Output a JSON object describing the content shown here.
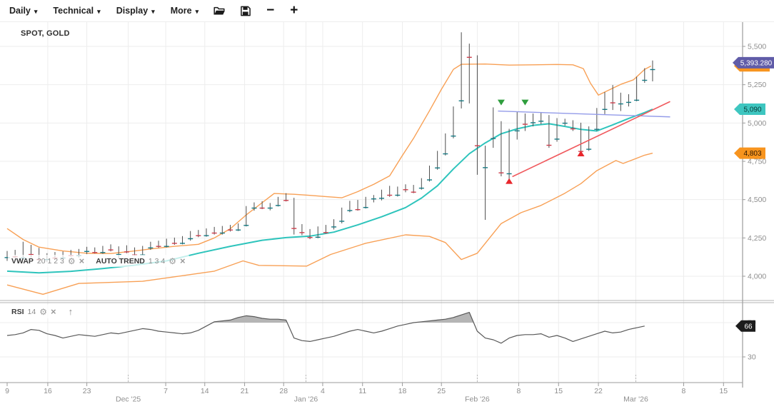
{
  "toolbar": {
    "menus": [
      {
        "label": "Daily"
      },
      {
        "label": "Technical"
      },
      {
        "label": "Display"
      },
      {
        "label": "More"
      }
    ],
    "zoom_out": "−",
    "zoom_in": "+"
  },
  "icons": {
    "caret": "▾",
    "gear": "⚙",
    "close": "×",
    "arrow_up": "↑"
  },
  "symbol": "SPOT, GOLD",
  "legend": {
    "vwap": {
      "name": "VWAP",
      "params": "20 1 2 3"
    },
    "auto_trend": {
      "name": "AUTO TREND",
      "params": "1 3 4"
    },
    "rsi": {
      "name": "RSI",
      "params": "14"
    }
  },
  "colors": {
    "candle_up": "#157983",
    "candle_down": "#CC3E4C",
    "wick": "#4d4d4d",
    "band": "#F8A055",
    "vwap_line": "#2EC4BC",
    "trend_blue": "#939BE9",
    "trend_red": "#F05A5E",
    "signal_sell": "#2F9E3E",
    "signal_buy": "#E8262C",
    "rsi_line": "#595959",
    "rsi_fill": "#b5b5b5",
    "grid": "#ededed",
    "axis_line": "#9b9b9b",
    "axis_text": "#8e8e8e"
  },
  "badges": [
    {
      "name": "upper-band-badge",
      "panel": "price",
      "price": 5373,
      "label": "",
      "color": "#F7941E",
      "text_color": "#2a1600",
      "obscured": true
    },
    {
      "name": "last-price-badge",
      "panel": "price",
      "price": 5393.28,
      "label": "5,393.280",
      "color": "#605CA8",
      "text_color": "#ffffff"
    },
    {
      "name": "vwap-badge",
      "panel": "price",
      "price": 5090,
      "label": "5,090",
      "color": "#3EC6C0",
      "text_color": "#083b38"
    },
    {
      "name": "lower-band-badge",
      "panel": "price",
      "price": 4803,
      "label": "4,803",
      "color": "#F7941E",
      "text_color": "#2a1600"
    },
    {
      "name": "rsi-badge",
      "panel": "rsi",
      "value": 66,
      "label": "66",
      "color": "#1C1C1C",
      "text_color": "#ffffff"
    }
  ],
  "chart_data": [
    {
      "type": "candlestick",
      "title": "SPOT, GOLD",
      "timeframe": "Daily",
      "y_axis": {
        "ticks": [
          5500,
          5250,
          5000,
          4750,
          4500,
          4250,
          4000
        ],
        "range": [
          3940,
          5600
        ]
      },
      "x_axis": {
        "day_ticks": [
          {
            "label": "9",
            "bar": 0
          },
          {
            "label": "16",
            "bar": 5.1
          },
          {
            "label": "23",
            "bar": 10
          },
          {
            "label": "7",
            "bar": 19.9
          },
          {
            "label": "14",
            "bar": 24.8
          },
          {
            "label": "21",
            "bar": 29.8
          },
          {
            "label": "28",
            "bar": 34.7
          },
          {
            "label": "4",
            "bar": 39.6
          },
          {
            "label": "11",
            "bar": 44.6
          },
          {
            "label": "18",
            "bar": 49.6
          },
          {
            "label": "25",
            "bar": 54.5
          },
          {
            "label": "8",
            "bar": 64.2
          },
          {
            "label": "15",
            "bar": 69.2
          },
          {
            "label": "22",
            "bar": 74.2
          },
          {
            "label": "8",
            "bar": 84.9
          },
          {
            "label": "15",
            "bar": 89.9
          }
        ],
        "month_ticks": [
          {
            "label": "Dec '25",
            "bar": 15.2
          },
          {
            "label": "Jan '26",
            "bar": 37.5
          },
          {
            "label": "Feb '26",
            "bar": 59
          },
          {
            "label": "Mar '26",
            "bar": 78.9
          }
        ]
      },
      "candles": [
        [
          4125,
          4165,
          4100,
          4150
        ],
        [
          4150,
          4172,
          4118,
          4130
        ],
        [
          4122,
          4225,
          4108,
          4158
        ],
        [
          4155,
          4205,
          4122,
          4145
        ],
        [
          4162,
          4185,
          4098,
          4112
        ],
        [
          4112,
          4150,
          4092,
          4135
        ],
        [
          4135,
          4158,
          4108,
          4122
        ],
        [
          4122,
          4162,
          4112,
          4150
        ],
        [
          4150,
          4172,
          4128,
          4138
        ],
        [
          4138,
          4178,
          4122,
          4165
        ],
        [
          4165,
          4192,
          4145,
          4175
        ],
        [
          4175,
          4188,
          4148,
          4158
        ],
        [
          4158,
          4198,
          4146,
          4188
        ],
        [
          4188,
          4208,
          4162,
          4175
        ],
        [
          4145,
          4195,
          4115,
          4182
        ],
        [
          4182,
          4202,
          4150,
          4162
        ],
        [
          4170,
          4188,
          4132,
          4142
        ],
        [
          4142,
          4198,
          4135,
          4188
        ],
        [
          4188,
          4225,
          4172,
          4212
        ],
        [
          4212,
          4232,
          4185,
          4198
        ],
        [
          4198,
          4245,
          4188,
          4232
        ],
        [
          4232,
          4252,
          4205,
          4218
        ],
        [
          4218,
          4262,
          4208,
          4248
        ],
        [
          4248,
          4295,
          4232,
          4282
        ],
        [
          4282,
          4302,
          4255,
          4268
        ],
        [
          4268,
          4312,
          4258,
          4298
        ],
        [
          4298,
          4322,
          4272,
          4285
        ],
        [
          4285,
          4328,
          4272,
          4315
        ],
        [
          4315,
          4335,
          4292,
          4305
        ],
        [
          4305,
          4345,
          4295,
          4338
        ],
        [
          4335,
          4458,
          4325,
          4448
        ],
        [
          4448,
          4482,
          4428,
          4472
        ],
        [
          4472,
          4490,
          4438,
          4448
        ],
        [
          4448,
          4478,
          4430,
          4465
        ],
        [
          4465,
          4518,
          4455,
          4508
        ],
        [
          4522,
          4542,
          4488,
          4498
        ],
        [
          4500,
          4512,
          4272,
          4315
        ],
        [
          4302,
          4340,
          4268,
          4288
        ],
        [
          4290,
          4308,
          4242,
          4256
        ],
        [
          4258,
          4325,
          4248,
          4318
        ],
        [
          4318,
          4335,
          4278,
          4288
        ],
        [
          4325,
          4372,
          4305,
          4365
        ],
        [
          4362,
          4448,
          4345,
          4438
        ],
        [
          4432,
          4492,
          4418,
          4485
        ],
        [
          4485,
          4498,
          4428,
          4438
        ],
        [
          4452,
          4518,
          4442,
          4508
        ],
        [
          4508,
          4530,
          4482,
          4522
        ],
        [
          4512,
          4565,
          4495,
          4555
        ],
        [
          4545,
          4590,
          4518,
          4532
        ],
        [
          4532,
          4585,
          4520,
          4578
        ],
        [
          4578,
          4600,
          4548,
          4568
        ],
        [
          4578,
          4596,
          4542,
          4552
        ],
        [
          4578,
          4640,
          4565,
          4632
        ],
        [
          4632,
          4722,
          4618,
          4710
        ],
        [
          4710,
          4818,
          4695,
          4802
        ],
        [
          4802,
          4932,
          4788,
          4918
        ],
        [
          4918,
          5108,
          4900,
          5092
        ],
        [
          5148,
          5592,
          5095,
          5505
        ],
        [
          5505,
          5518,
          5128,
          5432
        ],
        [
          5432,
          5442,
          4662,
          4855
        ],
        [
          4712,
          4852,
          4368,
          4768
        ],
        [
          4902,
          5102,
          4838,
          4992
        ],
        [
          4995,
          5012,
          4652,
          4678
        ],
        [
          4672,
          4962,
          4635,
          4955
        ],
        [
          4952,
          5072,
          4892,
          5018
        ],
        [
          5018,
          5062,
          4948,
          4995
        ],
        [
          5005,
          5062,
          4978,
          5042
        ],
        [
          5015,
          5068,
          4992,
          5052
        ],
        [
          5042,
          5052,
          4838,
          4858
        ],
        [
          4898,
          5032,
          4878,
          5015
        ],
        [
          5002,
          5028,
          4982,
          5008
        ],
        [
          5008,
          5018,
          4948,
          4965
        ],
        [
          4992,
          5002,
          4798,
          4818
        ],
        [
          4832,
          4978,
          4818,
          4968
        ],
        [
          4962,
          5098,
          4948,
          5092
        ],
        [
          5092,
          5202,
          5058,
          5158
        ],
        [
          5225,
          5248,
          5085,
          5135
        ],
        [
          5128,
          5198,
          5078,
          5158
        ],
        [
          5138,
          5188,
          5108,
          5168
        ],
        [
          5152,
          5302,
          5142,
          5268
        ],
        [
          5282,
          5358,
          5262,
          5342
        ],
        [
          5352,
          5408,
          5272,
          5393
        ]
      ],
      "overlays": {
        "vwap_line": [
          [
            0,
            4033
          ],
          [
            4,
            4022
          ],
          [
            8,
            4032
          ],
          [
            12,
            4050
          ],
          [
            16,
            4072
          ],
          [
            20,
            4100
          ],
          [
            24,
            4150
          ],
          [
            28,
            4195
          ],
          [
            32,
            4235
          ],
          [
            35,
            4252
          ],
          [
            38,
            4262
          ],
          [
            41,
            4288
          ],
          [
            44,
            4335
          ],
          [
            47,
            4388
          ],
          [
            50,
            4448
          ],
          [
            52,
            4510
          ],
          [
            54,
            4590
          ],
          [
            56,
            4700
          ],
          [
            58,
            4800
          ],
          [
            60,
            4870
          ],
          [
            62,
            4930
          ],
          [
            64,
            4962
          ],
          [
            66,
            4985
          ],
          [
            68,
            4995
          ],
          [
            70,
            4978
          ],
          [
            72,
            4958
          ],
          [
            74,
            4948
          ],
          [
            76,
            4988
          ],
          [
            78,
            5030
          ],
          [
            80,
            5068
          ],
          [
            81,
            5090
          ]
        ],
        "upper_band": [
          [
            0,
            4311
          ],
          [
            2,
            4240
          ],
          [
            4,
            4190
          ],
          [
            7,
            4165
          ],
          [
            10,
            4150
          ],
          [
            13,
            4148
          ],
          [
            16,
            4165
          ],
          [
            18,
            4178
          ],
          [
            21,
            4195
          ],
          [
            24,
            4208
          ],
          [
            26,
            4250
          ],
          [
            28,
            4310
          ],
          [
            30,
            4400
          ],
          [
            32,
            4480
          ],
          [
            33.5,
            4540
          ],
          [
            36,
            4535
          ],
          [
            38,
            4528
          ],
          [
            40,
            4520
          ],
          [
            42,
            4512
          ],
          [
            44,
            4552
          ],
          [
            46,
            4600
          ],
          [
            48,
            4655
          ],
          [
            49.5,
            4780
          ],
          [
            51,
            4900
          ],
          [
            53,
            5080
          ],
          [
            54.5,
            5220
          ],
          [
            56,
            5350
          ],
          [
            57,
            5383
          ],
          [
            60,
            5385
          ],
          [
            63,
            5378
          ],
          [
            66,
            5380
          ],
          [
            69,
            5382
          ],
          [
            71,
            5380
          ],
          [
            72.3,
            5355
          ],
          [
            73.2,
            5260
          ],
          [
            74.2,
            5182
          ],
          [
            75.5,
            5215
          ],
          [
            77,
            5252
          ],
          [
            78.6,
            5282
          ],
          [
            80,
            5350
          ],
          [
            80.8,
            5372
          ]
        ],
        "lower_band": [
          [
            0,
            3943
          ],
          [
            4.5,
            3882
          ],
          [
            9,
            3953
          ],
          [
            17,
            3967
          ],
          [
            26,
            4033
          ],
          [
            29.6,
            4100
          ],
          [
            31.6,
            4071
          ],
          [
            37.6,
            4066
          ],
          [
            40.6,
            4142
          ],
          [
            45,
            4215
          ],
          [
            50,
            4270
          ],
          [
            53,
            4260
          ],
          [
            55,
            4220
          ],
          [
            57,
            4109
          ],
          [
            59,
            4150
          ],
          [
            62,
            4344
          ],
          [
            64.5,
            4415
          ],
          [
            67,
            4462
          ],
          [
            70,
            4542
          ],
          [
            72,
            4604
          ],
          [
            74,
            4689
          ],
          [
            76.4,
            4755
          ],
          [
            77.3,
            4736
          ],
          [
            80,
            4790
          ],
          [
            81,
            4803
          ]
        ],
        "trendlines": [
          {
            "name": "resistance",
            "color_key": "trend_blue",
            "from": [
              61.6,
              5078
            ],
            "to": [
              83.2,
              5040
            ],
            "width": 1.4
          },
          {
            "name": "support",
            "color_key": "trend_red",
            "from": [
              63.4,
              4650
            ],
            "to": [
              83.2,
              5140
            ],
            "width": 1.6
          }
        ],
        "signals": [
          {
            "bar": 62,
            "kind": "sell",
            "price": 5115
          },
          {
            "bar": 65,
            "kind": "sell",
            "price": 5115
          },
          {
            "bar": 63,
            "kind": "buy",
            "price": 4640
          },
          {
            "bar": 72,
            "kind": "buy",
            "price": 4820
          }
        ]
      }
    },
    {
      "type": "line",
      "name": "RSI 14",
      "levels": [
        70,
        30
      ],
      "overbought_fill": true,
      "last_value": 66,
      "values": [
        55,
        56,
        58,
        62,
        61,
        57,
        55,
        52,
        54,
        56,
        55,
        54,
        56,
        58,
        57,
        59,
        61,
        63,
        62,
        60,
        59,
        58,
        57,
        58,
        61,
        66,
        71,
        72,
        73,
        76,
        78,
        77,
        75,
        74,
        74,
        73,
        52,
        49,
        48,
        50,
        52,
        54,
        57,
        60,
        62,
        60,
        58,
        60,
        63,
        66,
        68,
        70,
        71,
        72,
        73,
        74,
        76,
        79,
        82,
        60,
        52,
        50,
        46,
        52,
        55,
        56,
        56,
        57,
        53,
        55,
        52,
        48,
        51,
        54,
        57,
        60,
        58,
        59,
        62,
        64,
        66
      ]
    }
  ]
}
